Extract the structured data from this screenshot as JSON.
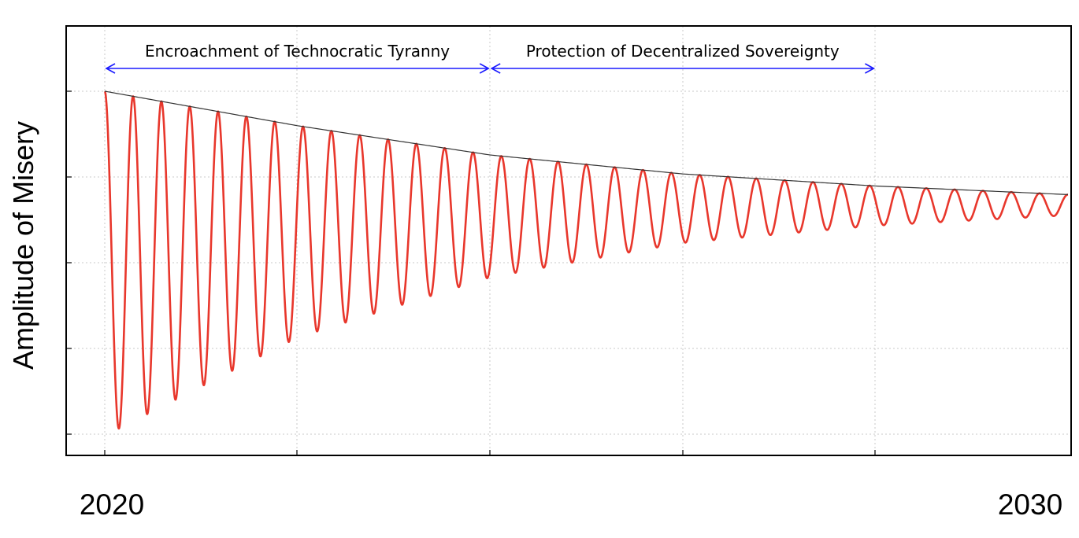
{
  "chart_data": {
    "type": "line",
    "title": "",
    "xlabel": "",
    "ylabel": "Amplitude of Misery",
    "x_tick_labels": [
      "2020",
      "2030"
    ],
    "xlim": [
      2020,
      2030
    ],
    "grid": true,
    "series": [
      {
        "description": "damped oscillation",
        "color": "#e8372c",
        "oscillation_count": 34,
        "peak_envelope": [
          {
            "x": 2020,
            "y": 1.0
          },
          {
            "x": 2022,
            "y": 0.8
          },
          {
            "x": 2024,
            "y": 0.63
          },
          {
            "x": 2026,
            "y": 0.52
          },
          {
            "x": 2028,
            "y": 0.45
          },
          {
            "x": 2030,
            "y": 0.4
          }
        ],
        "trough_envelope": [
          {
            "x": 2020,
            "y": -1.0
          },
          {
            "x": 2022,
            "y": -0.43
          },
          {
            "x": 2024,
            "y": -0.08
          },
          {
            "x": 2026,
            "y": 0.12
          },
          {
            "x": 2028,
            "y": 0.22
          },
          {
            "x": 2030,
            "y": 0.28
          }
        ]
      },
      {
        "description": "upper envelope curve",
        "color": "#333333"
      }
    ],
    "annotations": [
      {
        "text": "Encroachment of Technocratic Tyranny",
        "x_start": 2020,
        "x_end": 2024,
        "arrow_color": "#1a1aff"
      },
      {
        "text": "Protection of Decentralized Sovereignty",
        "x_start": 2024,
        "x_end": 2028,
        "arrow_color": "#1a1aff"
      }
    ]
  }
}
